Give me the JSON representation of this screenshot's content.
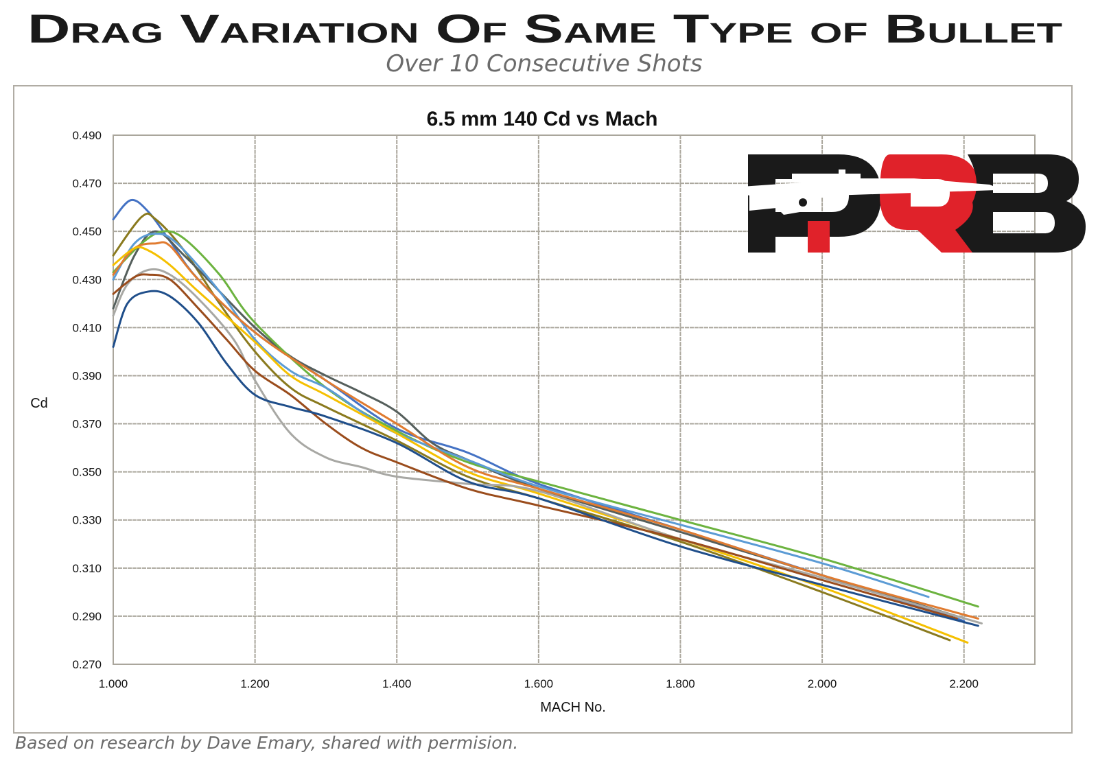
{
  "header": {
    "title": "Drag Variation Of Same Type of Bullet",
    "subtitle": "Over 10 Consecutive Shots"
  },
  "footer": "Based on research by Dave Emary, shared with permision.",
  "logo": {
    "text": "PRB",
    "colors": {
      "black": "#1a1a1a",
      "red": "#e0222a"
    }
  },
  "chart_data": {
    "type": "line",
    "title": "6.5 mm 140 Cd vs Mach",
    "xlabel": "MACH No.",
    "ylabel": "Cd",
    "xlim": [
      1.0,
      2.3
    ],
    "ylim": [
      0.27,
      0.49
    ],
    "xticks": [
      "1.000",
      "1.200",
      "1.400",
      "1.600",
      "1.800",
      "2.000",
      "2.200"
    ],
    "xtick_values": [
      1.0,
      1.2,
      1.4,
      1.6,
      1.8,
      2.0,
      2.2
    ],
    "yticks": [
      "0.490",
      "0.470",
      "0.450",
      "0.430",
      "0.410",
      "0.390",
      "0.370",
      "0.350",
      "0.330",
      "0.310",
      "0.290",
      "0.270"
    ],
    "ytick_values": [
      0.49,
      0.47,
      0.45,
      0.43,
      0.41,
      0.39,
      0.37,
      0.35,
      0.33,
      0.31,
      0.29,
      0.27
    ],
    "grid": true,
    "legend": "none",
    "series": [
      {
        "color": "#4472c4",
        "x": [
          1.0,
          1.025,
          1.05,
          1.08,
          1.12,
          1.2,
          1.3,
          1.4,
          1.5,
          1.6,
          1.8,
          2.0,
          2.2
        ],
        "y": [
          0.455,
          0.463,
          0.458,
          0.446,
          0.43,
          0.408,
          0.388,
          0.368,
          0.358,
          0.345,
          0.326,
          0.307,
          0.288
        ]
      },
      {
        "color": "#8a7a1e",
        "x": [
          1.0,
          1.04,
          1.06,
          1.1,
          1.15,
          1.2,
          1.25,
          1.3,
          1.4,
          1.5,
          1.6,
          1.8,
          2.0,
          2.18
        ],
        "y": [
          0.44,
          0.456,
          0.455,
          0.442,
          0.42,
          0.4,
          0.385,
          0.377,
          0.363,
          0.348,
          0.339,
          0.321,
          0.3,
          0.28
        ]
      },
      {
        "color": "#555f5c",
        "x": [
          1.0,
          1.03,
          1.06,
          1.1,
          1.15,
          1.2,
          1.25,
          1.3,
          1.35,
          1.4,
          1.45,
          1.5,
          1.6,
          1.8,
          2.0,
          2.19
        ],
        "y": [
          0.418,
          0.44,
          0.45,
          0.44,
          0.425,
          0.41,
          0.398,
          0.39,
          0.383,
          0.375,
          0.362,
          0.355,
          0.343,
          0.325,
          0.307,
          0.29
        ]
      },
      {
        "color": "#6cb33f",
        "x": [
          1.0,
          1.04,
          1.07,
          1.1,
          1.15,
          1.2,
          1.3,
          1.4,
          1.5,
          1.6,
          1.8,
          2.0,
          2.22
        ],
        "y": [
          0.433,
          0.445,
          0.45,
          0.447,
          0.432,
          0.412,
          0.385,
          0.367,
          0.354,
          0.346,
          0.33,
          0.314,
          0.294
        ]
      },
      {
        "color": "#5b9bd5",
        "x": [
          1.0,
          1.03,
          1.06,
          1.09,
          1.15,
          1.2,
          1.25,
          1.3,
          1.35,
          1.4,
          1.5,
          1.6,
          1.8,
          2.0,
          2.15
        ],
        "y": [
          0.43,
          0.445,
          0.449,
          0.445,
          0.425,
          0.405,
          0.392,
          0.385,
          0.375,
          0.366,
          0.355,
          0.344,
          0.328,
          0.312,
          0.298
        ]
      },
      {
        "color": "#e07b30",
        "x": [
          1.0,
          1.03,
          1.06,
          1.08,
          1.12,
          1.2,
          1.3,
          1.4,
          1.5,
          1.6,
          1.8,
          2.0,
          2.22
        ],
        "y": [
          0.432,
          0.443,
          0.445,
          0.444,
          0.43,
          0.408,
          0.388,
          0.37,
          0.352,
          0.343,
          0.326,
          0.307,
          0.289
        ]
      },
      {
        "color": "#f5c000",
        "x": [
          1.0,
          1.03,
          1.05,
          1.08,
          1.12,
          1.2,
          1.25,
          1.3,
          1.4,
          1.5,
          1.6,
          1.8,
          2.0,
          2.205
        ],
        "y": [
          0.436,
          0.443,
          0.442,
          0.436,
          0.425,
          0.404,
          0.39,
          0.382,
          0.366,
          0.35,
          0.341,
          0.322,
          0.302,
          0.279
        ]
      },
      {
        "color": "#a8a8a4",
        "x": [
          1.0,
          1.02,
          1.05,
          1.08,
          1.12,
          1.17,
          1.2,
          1.25,
          1.3,
          1.35,
          1.4,
          1.5,
          1.6,
          1.8,
          2.0,
          2.225
        ],
        "y": [
          0.415,
          0.428,
          0.434,
          0.432,
          0.422,
          0.405,
          0.388,
          0.366,
          0.356,
          0.352,
          0.348,
          0.345,
          0.342,
          0.322,
          0.306,
          0.287
        ]
      },
      {
        "color": "#9a4c1c",
        "x": [
          1.0,
          1.03,
          1.05,
          1.08,
          1.12,
          1.16,
          1.2,
          1.25,
          1.3,
          1.35,
          1.4,
          1.5,
          1.6,
          1.8,
          2.0,
          2.19
        ],
        "y": [
          0.424,
          0.431,
          0.432,
          0.43,
          0.418,
          0.405,
          0.392,
          0.382,
          0.37,
          0.36,
          0.354,
          0.343,
          0.336,
          0.322,
          0.305,
          0.289
        ]
      },
      {
        "color": "#1f4e8a",
        "x": [
          1.0,
          1.02,
          1.05,
          1.08,
          1.12,
          1.16,
          1.2,
          1.25,
          1.3,
          1.4,
          1.5,
          1.6,
          1.8,
          2.0,
          2.22
        ],
        "y": [
          0.402,
          0.42,
          0.425,
          0.423,
          0.412,
          0.395,
          0.382,
          0.377,
          0.373,
          0.362,
          0.346,
          0.339,
          0.319,
          0.303,
          0.286
        ]
      }
    ]
  }
}
